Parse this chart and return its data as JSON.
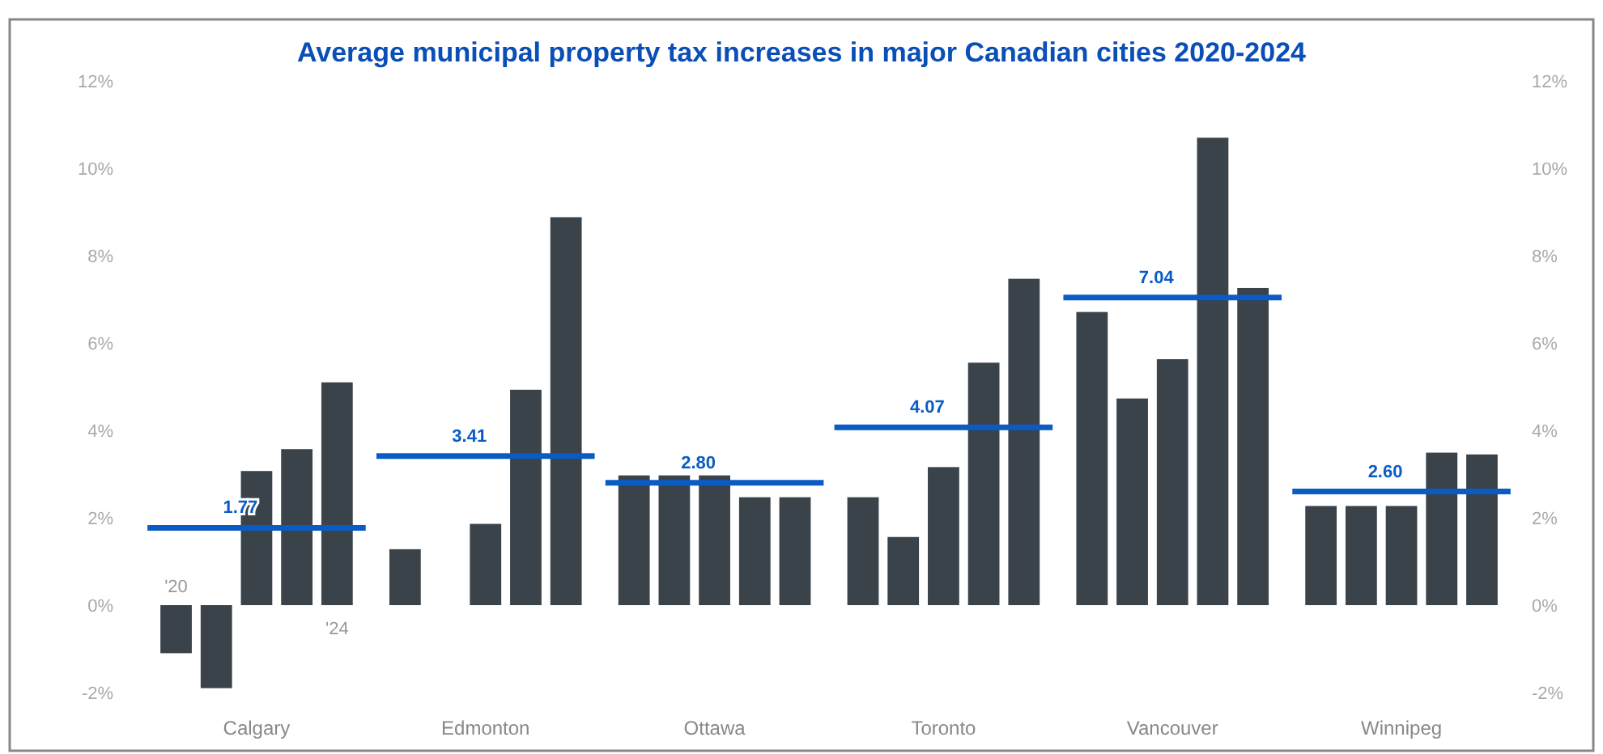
{
  "chart_data": {
    "type": "bar",
    "title": "Average municipal property tax increases in major Canadian cities 2020-2024",
    "categories": [
      "Calgary",
      "Edmonton",
      "Ottawa",
      "Toronto",
      "Vancouver",
      "Winnipeg"
    ],
    "series": [
      {
        "name": "'20",
        "color": "#3a424a",
        "values": [
          -1.1,
          1.28,
          2.97,
          2.47,
          6.71,
          2.27
        ]
      },
      {
        "color": "#3a424a",
        "values": [
          -1.9,
          null,
          2.97,
          1.56,
          4.73,
          2.27
        ]
      },
      {
        "color": "#3a424a",
        "values": [
          3.07,
          1.86,
          2.97,
          3.16,
          5.63,
          2.27
        ]
      },
      {
        "color": "#3a424a",
        "values": [
          3.57,
          4.93,
          2.47,
          5.55,
          10.7,
          3.49
        ]
      },
      {
        "name": "'24",
        "color": "#3a424a",
        "values": [
          5.1,
          8.88,
          2.47,
          7.47,
          7.26,
          3.45
        ]
      }
    ],
    "ref_lines": [
      {
        "axis": "y",
        "value": 1.77,
        "label": "1.77",
        "color": "#0a5cc4"
      },
      {
        "axis": "y",
        "value": 3.41,
        "label": "3.41",
        "color": "#0a5cc4"
      },
      {
        "axis": "y",
        "value": 2.8,
        "label": "2.80",
        "color": "#0a5cc4"
      },
      {
        "axis": "y",
        "value": 4.07,
        "label": "4.07",
        "color": "#0a5cc4"
      },
      {
        "axis": "y",
        "value": 7.04,
        "label": "7.04",
        "color": "#0a5cc4"
      },
      {
        "axis": "y",
        "value": 2.6,
        "label": "2.60",
        "color": "#0a5cc4"
      }
    ],
    "ylim": [
      -2,
      12
    ],
    "yticks": [
      {
        "value": -2,
        "label": "-2%"
      },
      {
        "value": 0,
        "label": "0%"
      },
      {
        "value": 2,
        "label": "2%"
      },
      {
        "value": 4,
        "label": "4%"
      },
      {
        "value": 6,
        "label": "6%"
      },
      {
        "value": 8,
        "label": "8%"
      },
      {
        "value": 10,
        "label": "10%"
      },
      {
        "value": 12,
        "label": "12%"
      }
    ],
    "y2lim": [
      -2,
      12
    ],
    "y2ticks": [
      {
        "value": -2,
        "label": "-2%"
      },
      {
        "value": 0,
        "label": "0%"
      },
      {
        "value": 2,
        "label": "2%"
      },
      {
        "value": 4,
        "label": "4%"
      },
      {
        "value": 6,
        "label": "6%"
      },
      {
        "value": 8,
        "label": "8%"
      },
      {
        "value": 10,
        "label": "10%"
      },
      {
        "value": 12,
        "label": "12%"
      }
    ],
    "grid": false,
    "legend": false
  }
}
